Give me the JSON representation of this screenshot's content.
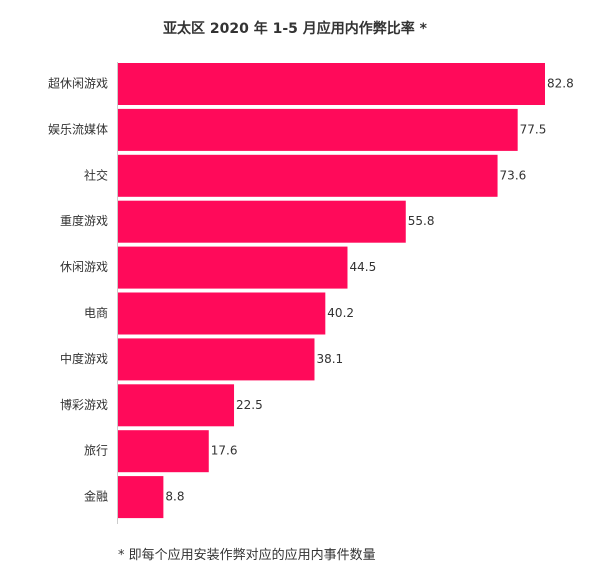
{
  "chart_data": {
    "type": "bar",
    "orientation": "horizontal",
    "title": "亚太区 2020 年 1-5 月应用内作弊比率 *",
    "categories": [
      "超休闲游戏",
      "娱乐流媒体",
      "社交",
      "重度游戏",
      "休闲游戏",
      "电商",
      "中度游戏",
      "博彩游戏",
      "旅行",
      "金融"
    ],
    "values": [
      82.8,
      77.5,
      73.6,
      55.8,
      44.5,
      40.2,
      38.1,
      22.5,
      17.6,
      8.8
    ],
    "value_labels": [
      "82.8",
      "77.5",
      "73.6",
      "55.8",
      "44.5",
      "40.2",
      "38.1",
      "22.5",
      "17.6",
      "8.8"
    ],
    "xlim": [
      0,
      82.8
    ],
    "grid": false,
    "bar_color": "#FF0A5A",
    "footnote": "* 即每个应用安装作弊对应的应用内事件数量"
  }
}
